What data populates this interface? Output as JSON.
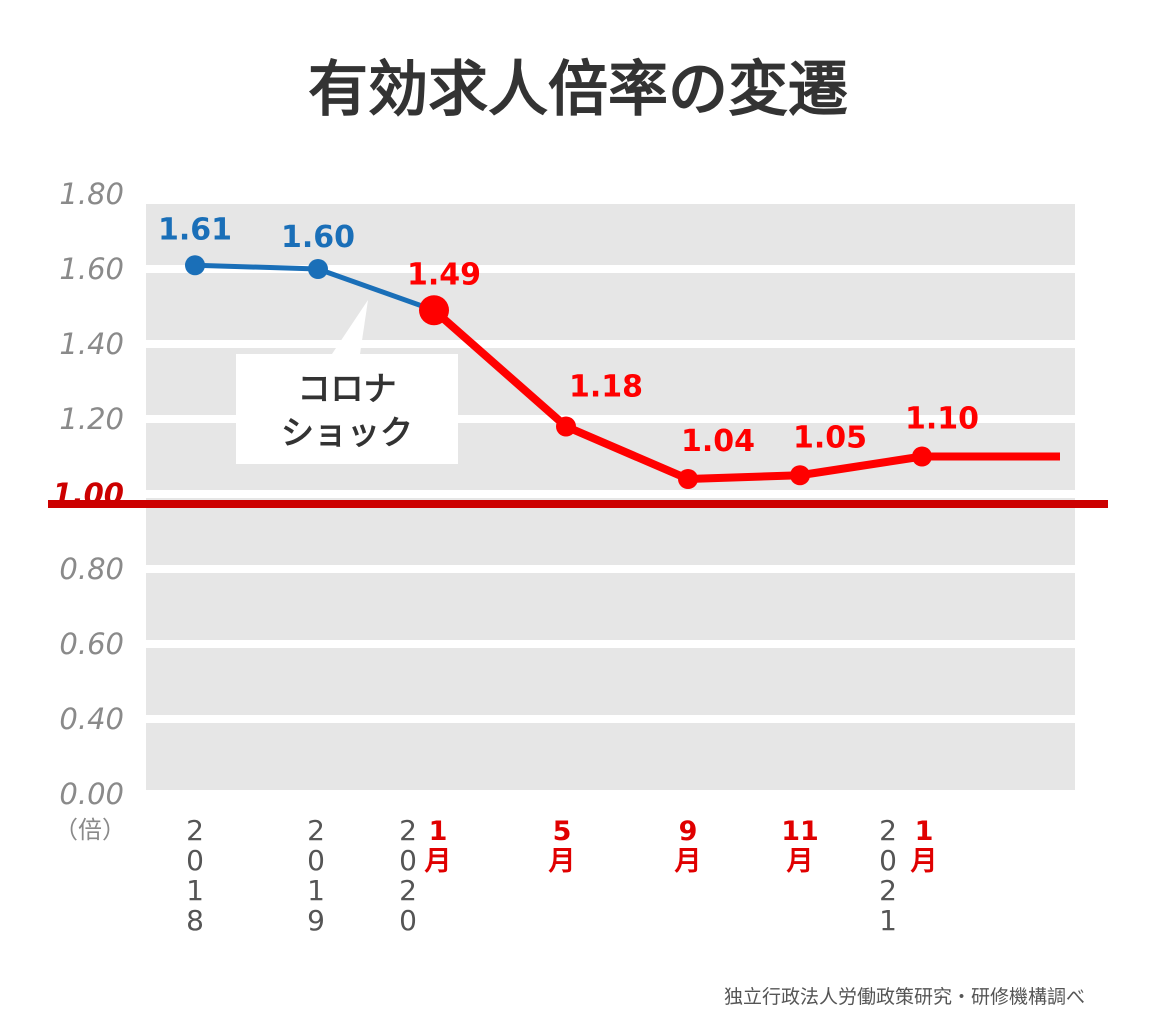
{
  "chart_data": {
    "type": "line",
    "title": "有効求人倍率の変遷",
    "yunit": "（倍）",
    "ylim": [
      0,
      1.8
    ],
    "yticks": [
      "1.80",
      "1.60",
      "1.40",
      "1.20",
      "1.00",
      "0.80",
      "0.60",
      "0.40",
      "0.00"
    ],
    "reference_line": {
      "value": 1.0,
      "label": "1.00",
      "color": "#cc0000"
    },
    "points": [
      {
        "year": "2018",
        "month": "",
        "value": 1.61,
        "label": "1.61",
        "color": "#1a6fb8"
      },
      {
        "year": "2019",
        "month": "",
        "value": 1.6,
        "label": "1.60",
        "color": "#1a6fb8"
      },
      {
        "year": "2020",
        "month": "1月",
        "value": 1.49,
        "label": "1.49",
        "color": "#ff0000"
      },
      {
        "year": "",
        "month": "5月",
        "value": 1.18,
        "label": "1.18",
        "color": "#ff0000"
      },
      {
        "year": "",
        "month": "9月",
        "value": 1.04,
        "label": "1.04",
        "color": "#ff0000"
      },
      {
        "year": "",
        "month": "11月",
        "value": 1.05,
        "label": "1.05",
        "color": "#ff0000"
      },
      {
        "year": "2021",
        "month": "1月",
        "value": 1.1,
        "label": "1.10",
        "color": "#ff0000"
      }
    ],
    "series_colors": {
      "before": "#1a6fb8",
      "after": "#ff0000"
    },
    "grid": true
  },
  "callout": {
    "line1": "コロナ",
    "line2": "ショック"
  },
  "source": "独立行政法人労働政策研究・研修機構調べ"
}
